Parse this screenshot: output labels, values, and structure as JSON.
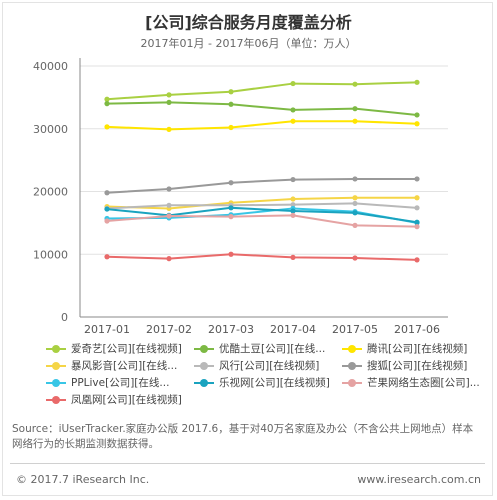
{
  "title": "[公司]综合服务月度覆盖分析",
  "subtitle": "2017年01月 - 2017年06月（单位：万人）",
  "source": "Source：iUserTracker.家庭办公版 2017.6，基于对40万名家庭及办公（不含公共上网地点）样本网络行为的长期监测数据获得。",
  "copyright": "© 2017.7 iResearch Inc.",
  "website": "www.iresearch.com.cn",
  "chart_data": {
    "type": "line",
    "categories": [
      "2017-01",
      "2017-02",
      "2017-03",
      "2017-04",
      "2017-05",
      "2017-06"
    ],
    "ylim": [
      0,
      40000
    ],
    "yticks": [
      0,
      10000,
      20000,
      30000,
      40000
    ],
    "ytick_labels": [
      "0",
      "10000",
      "20000",
      "30000",
      "40000"
    ],
    "grid": true,
    "legend_position": "bottom",
    "series": [
      {
        "name": "爱奇艺[公司][在线视频]",
        "color": "#a9d042",
        "values": [
          34700,
          35400,
          35900,
          37200,
          37100,
          37400
        ]
      },
      {
        "name": "优酷土豆[公司][在线...",
        "color": "#7db944",
        "values": [
          34000,
          34200,
          33900,
          33000,
          33200,
          32200
        ]
      },
      {
        "name": "腾讯[公司][在线视频]",
        "color": "#ffe500",
        "values": [
          30300,
          29900,
          30200,
          31200,
          31200,
          30800
        ]
      },
      {
        "name": "暴风影音[公司][在线...",
        "color": "#f5d547",
        "values": [
          17600,
          17300,
          18200,
          18800,
          19000,
          19000
        ]
      },
      {
        "name": "风行[公司][在线视频]",
        "color": "#b9b9b9",
        "values": [
          17300,
          17800,
          17800,
          17900,
          18100,
          17400
        ]
      },
      {
        "name": "搜狐[公司][在线视频]",
        "color": "#999999",
        "values": [
          19800,
          20400,
          21400,
          21900,
          22000,
          22000
        ]
      },
      {
        "name": "PPLive[公司][在线...",
        "color": "#38c6e6",
        "values": [
          15700,
          15800,
          16300,
          17300,
          16800,
          15000
        ]
      },
      {
        "name": "乐视网[公司][在线视频]",
        "color": "#1aa3bf",
        "values": [
          17200,
          16200,
          17400,
          16900,
          16600,
          15100
        ]
      },
      {
        "name": "芒果网络生态圈[公司]...",
        "color": "#e5a3a3",
        "values": [
          15300,
          16100,
          16000,
          16200,
          14600,
          14400
        ]
      },
      {
        "name": "凤凰网[公司][在线视频]",
        "color": "#e96a6a",
        "values": [
          9600,
          9300,
          10000,
          9500,
          9400,
          9100
        ]
      }
    ]
  }
}
